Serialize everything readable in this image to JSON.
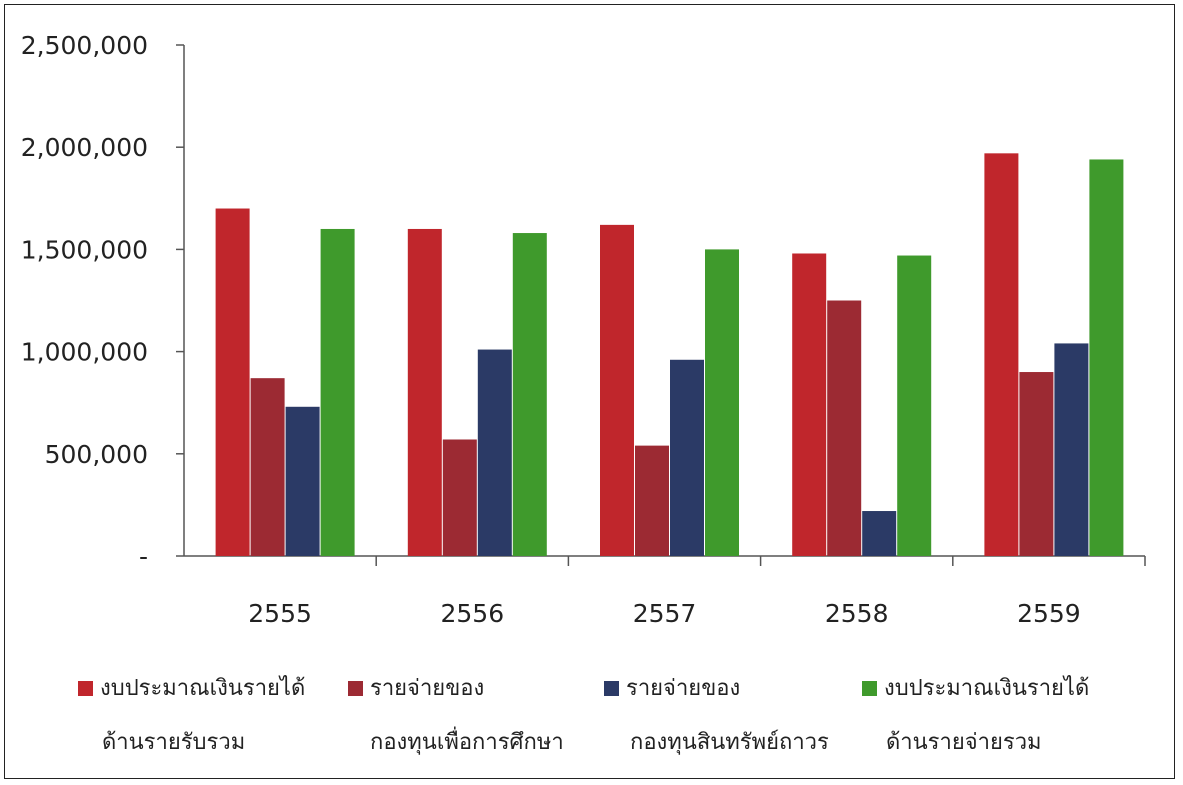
{
  "chart_data": {
    "type": "bar",
    "categories": [
      "2555",
      "2556",
      "2557",
      "2558",
      "2559"
    ],
    "y_ticks": [
      "-",
      "500,000",
      "1,000,000",
      "1,500,000",
      "2,000,000",
      "2,500,000"
    ],
    "ylim": [
      0,
      2500000
    ],
    "grid": false,
    "legend_position": "bottom",
    "series": [
      {
        "name": "งบประมาณเงินรายได้ ด้านรายรับรวม",
        "color": "#c0262c",
        "values": [
          1700000,
          1600000,
          1620000,
          1480000,
          1970000
        ]
      },
      {
        "name": "รายจ่ายของ กองทุนเพื่อการศึกษา",
        "color": "#9c2a33",
        "values": [
          870000,
          570000,
          540000,
          1250000,
          900000
        ]
      },
      {
        "name": "รายจ่ายของ กองทุนสินทรัพย์ถาวร",
        "color": "#2b3a66",
        "values": [
          730000,
          1010000,
          960000,
          220000,
          1040000
        ]
      },
      {
        "name": "งบประมาณเงินรายได้ ด้านรายจ่ายรวม",
        "color": "#3f9a2c",
        "values": [
          1600000,
          1580000,
          1500000,
          1470000,
          1940000
        ]
      }
    ]
  },
  "legend": [
    {
      "line1": "งบประมาณเงินรายได้",
      "line2": "ด้านรายรับรวม",
      "color": "#c0262c"
    },
    {
      "line1": "รายจ่ายของ",
      "line2": "กองทุนเพื่อการศึกษา",
      "color": "#9c2a33"
    },
    {
      "line1": "รายจ่ายของ",
      "line2": "กองทุนสินทรัพย์ถาวร",
      "color": "#2b3a66"
    },
    {
      "line1": "งบประมาณเงินรายได้",
      "line2": "ด้านรายจ่ายรวม",
      "color": "#3f9a2c"
    }
  ]
}
